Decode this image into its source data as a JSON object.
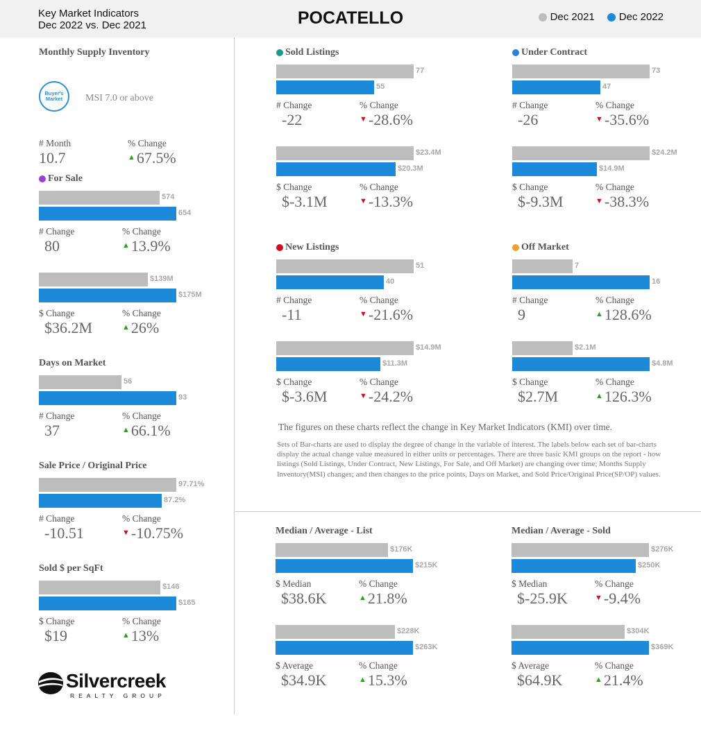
{
  "header": {
    "title_line1": "Key Market Indicators",
    "title_line2": "Dec 2022 vs. Dec 2021",
    "city": "POCATELLO",
    "legend": [
      {
        "label": "Dec 2021",
        "color": "#bdbdbd"
      },
      {
        "label": "Dec 2022",
        "color": "#1c8ad9"
      }
    ]
  },
  "msi": {
    "title": "Monthly Supply Inventory",
    "badge_line1": "Buyer's",
    "badge_line2": "Market",
    "badge_text": "MSI 7.0 or above",
    "stats": [
      {
        "label": "# Month",
        "value": "10.7"
      },
      {
        "label": "% Change",
        "value": "67.5%",
        "dir": "up"
      }
    ]
  },
  "chart_data": [
    {
      "id": "for-sale-count",
      "type": "bar",
      "title": "For Sale",
      "title_dot": "#9b3fd4",
      "categories": [
        "Dec 2021",
        "Dec 2022"
      ],
      "values": [
        574,
        654
      ],
      "data_labels": [
        "574",
        "654"
      ],
      "stats": [
        {
          "label": "# Change",
          "value": "80"
        },
        {
          "label": "% Change",
          "value": "13.9%",
          "dir": "up"
        }
      ]
    },
    {
      "id": "for-sale-volume",
      "type": "bar",
      "title": "",
      "categories": [
        "Dec 2021",
        "Dec 2022"
      ],
      "values": [
        139,
        175
      ],
      "data_labels": [
        "$139M",
        "$175M"
      ],
      "stats": [
        {
          "label": "$ Change",
          "value": "$36.2M"
        },
        {
          "label": "% Change",
          "value": "26%",
          "dir": "up"
        }
      ]
    },
    {
      "id": "days-on-market",
      "type": "bar",
      "title": "Days on Market",
      "categories": [
        "Dec 2021",
        "Dec 2022"
      ],
      "values": [
        56,
        93
      ],
      "data_labels": [
        "56",
        "93"
      ],
      "stats": [
        {
          "label": "# Change",
          "value": "37"
        },
        {
          "label": "% Change",
          "value": "66.1%",
          "dir": "up"
        }
      ]
    },
    {
      "id": "sp-op",
      "type": "bar",
      "title": "Sale Price / Original Price",
      "categories": [
        "Dec 2021",
        "Dec 2022"
      ],
      "values": [
        97.71,
        87.2
      ],
      "data_labels": [
        "97.71%",
        "87.2%"
      ],
      "stats": [
        {
          "label": "# Change",
          "value": "-10.51"
        },
        {
          "label": "% Change",
          "value": "-10.75%",
          "dir": "down"
        }
      ]
    },
    {
      "id": "sold-per-sqft",
      "type": "bar",
      "title": "Sold $ per SqFt",
      "categories": [
        "Dec 2021",
        "Dec 2022"
      ],
      "values": [
        146,
        165
      ],
      "data_labels": [
        "$146",
        "$165"
      ],
      "stats": [
        {
          "label": "$ Change",
          "value": "$19"
        },
        {
          "label": "% Change",
          "value": "13%",
          "dir": "up"
        }
      ]
    },
    {
      "id": "sold-listings-count",
      "type": "bar",
      "title": "Sold Listings",
      "title_dot": "#1a9b8c",
      "categories": [
        "Dec 2021",
        "Dec 2022"
      ],
      "values": [
        77,
        55
      ],
      "data_labels": [
        "77",
        "55"
      ],
      "stats": [
        {
          "label": "# Change",
          "value": "-22"
        },
        {
          "label": "% Change",
          "value": "-28.6%",
          "dir": "down"
        }
      ]
    },
    {
      "id": "sold-listings-volume",
      "type": "bar",
      "title": "",
      "categories": [
        "Dec 2021",
        "Dec 2022"
      ],
      "values": [
        23.4,
        20.3
      ],
      "data_labels": [
        "$23.4M",
        "$20.3M"
      ],
      "stats": [
        {
          "label": "$ Change",
          "value": "$-3.1M"
        },
        {
          "label": "% Change",
          "value": "-13.3%",
          "dir": "down"
        }
      ]
    },
    {
      "id": "under-contract-count",
      "type": "bar",
      "title": "Under Contract",
      "title_dot": "#2b7fd4",
      "categories": [
        "Dec 2021",
        "Dec 2022"
      ],
      "values": [
        73,
        47
      ],
      "data_labels": [
        "73",
        "47"
      ],
      "stats": [
        {
          "label": "# Change",
          "value": "-26"
        },
        {
          "label": "% Change",
          "value": "-35.6%",
          "dir": "down"
        }
      ]
    },
    {
      "id": "under-contract-volume",
      "type": "bar",
      "title": "",
      "categories": [
        "Dec 2021",
        "Dec 2022"
      ],
      "values": [
        24.2,
        14.9
      ],
      "data_labels": [
        "$24.2M",
        "$14.9M"
      ],
      "stats": [
        {
          "label": "$ Change",
          "value": "$-9.3M"
        },
        {
          "label": "% Change",
          "value": "-38.3%",
          "dir": "down"
        }
      ]
    },
    {
      "id": "new-listings-count",
      "type": "bar",
      "title": "New Listings",
      "title_dot": "#cc1020",
      "categories": [
        "Dec 2021",
        "Dec 2022"
      ],
      "values": [
        51,
        40
      ],
      "data_labels": [
        "51",
        "40"
      ],
      "stats": [
        {
          "label": "# Change",
          "value": "-11"
        },
        {
          "label": "% Change",
          "value": "-21.6%",
          "dir": "down"
        }
      ]
    },
    {
      "id": "new-listings-volume",
      "type": "bar",
      "title": "",
      "categories": [
        "Dec 2021",
        "Dec 2022"
      ],
      "values": [
        14.9,
        11.3
      ],
      "data_labels": [
        "$14.9M",
        "$11.3M"
      ],
      "stats": [
        {
          "label": "$ Change",
          "value": "$-3.6M"
        },
        {
          "label": "% Change",
          "value": "-24.2%",
          "dir": "down"
        }
      ]
    },
    {
      "id": "off-market-count",
      "type": "bar",
      "title": "Off Market",
      "title_dot": "#f0a030",
      "categories": [
        "Dec 2021",
        "Dec 2022"
      ],
      "values": [
        7,
        16
      ],
      "data_labels": [
        "7",
        "16"
      ],
      "stats": [
        {
          "label": "# Change",
          "value": "9"
        },
        {
          "label": "% Change",
          "value": "128.6%",
          "dir": "up"
        }
      ]
    },
    {
      "id": "off-market-volume",
      "type": "bar",
      "title": "",
      "categories": [
        "Dec 2021",
        "Dec 2022"
      ],
      "values": [
        2.1,
        4.8
      ],
      "data_labels": [
        "$2.1M",
        "$4.8M"
      ],
      "stats": [
        {
          "label": "$ Change",
          "value": "$2.7M"
        },
        {
          "label": "% Change",
          "value": "126.3%",
          "dir": "up"
        }
      ]
    },
    {
      "id": "list-median",
      "type": "bar",
      "title": "Median / Average - List",
      "categories": [
        "Dec 2021",
        "Dec 2022"
      ],
      "values": [
        176,
        215
      ],
      "data_labels": [
        "$176K",
        "$215K"
      ],
      "stats": [
        {
          "label": "$ Median",
          "value": "$38.6K"
        },
        {
          "label": "% Change",
          "value": "21.8%",
          "dir": "up"
        }
      ]
    },
    {
      "id": "list-average",
      "type": "bar",
      "title": "",
      "categories": [
        "Dec 2021",
        "Dec 2022"
      ],
      "values": [
        228,
        263
      ],
      "data_labels": [
        "$228K",
        "$263K"
      ],
      "stats": [
        {
          "label": "$ Average",
          "value": "$34.9K"
        },
        {
          "label": "% Change",
          "value": "15.3%",
          "dir": "up"
        }
      ]
    },
    {
      "id": "sold-median",
      "type": "bar",
      "title": "Median / Average - Sold",
      "categories": [
        "Dec 2021",
        "Dec 2022"
      ],
      "values": [
        276,
        250
      ],
      "data_labels": [
        "$276K",
        "$250K"
      ],
      "stats": [
        {
          "label": "$ Median",
          "value": "$-25.9K"
        },
        {
          "label": "% Change",
          "value": "-9.4%",
          "dir": "down"
        }
      ]
    },
    {
      "id": "sold-average",
      "type": "bar",
      "title": "",
      "categories": [
        "Dec 2021",
        "Dec 2022"
      ],
      "values": [
        304,
        369
      ],
      "data_labels": [
        "$304K",
        "$369K"
      ],
      "stats": [
        {
          "label": "$ Average",
          "value": "$64.9K"
        },
        {
          "label": "% Change",
          "value": "21.4%",
          "dir": "up"
        }
      ]
    }
  ],
  "description": {
    "headline": "The figures on these charts reflect the change in Key Market Indicators (KMI) over time.",
    "body": "Sets of Bar-charts are used to display the degree of change in the variable of interest. The labels below each set of bar-charts display the actual change value measured in either units or percentages. There are three basic KMI groups on the report - how listings (Sold Listings, Under Contract, New Listings, For Sale, and Off Market) are changing over time; Months Supply Inventory(MSI) changes; and then changes to the price points, Days on Market, and Sold Price/Original Price(SP/OP) values."
  },
  "logo": {
    "word": "Silvercreek",
    "sub": "REALTY GROUP"
  }
}
